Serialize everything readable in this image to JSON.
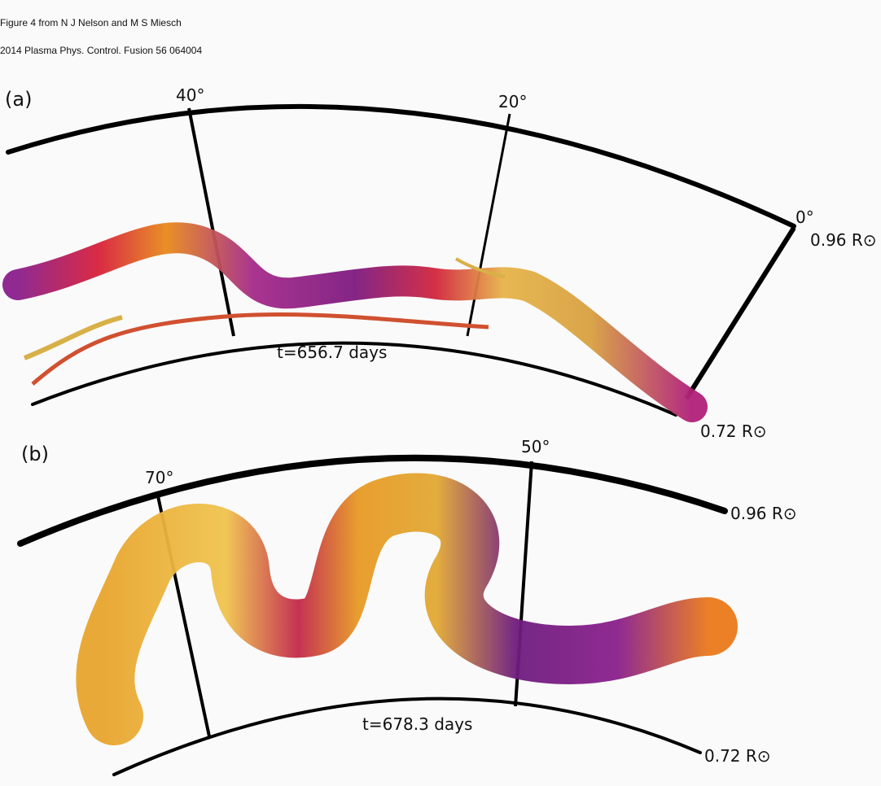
{
  "header": {
    "line1": "Figure 4 from N J Nelson and M S Miesch",
    "line2": "2014 Plasma Phys. Control. Fusion 56 064004"
  },
  "panels": [
    {
      "label": "(a)",
      "angles": [
        "40°",
        "20°",
        "0°"
      ],
      "outer_radius": "0.96 R⊙",
      "inner_radius": "0.72 R⊙",
      "time": "t=656.7 days"
    },
    {
      "label": "(b)",
      "angles": [
        "70°",
        "50°"
      ],
      "outer_radius": "0.96 R⊙",
      "inner_radius": "0.72 R⊙",
      "time": "t=678.3 days"
    }
  ]
}
